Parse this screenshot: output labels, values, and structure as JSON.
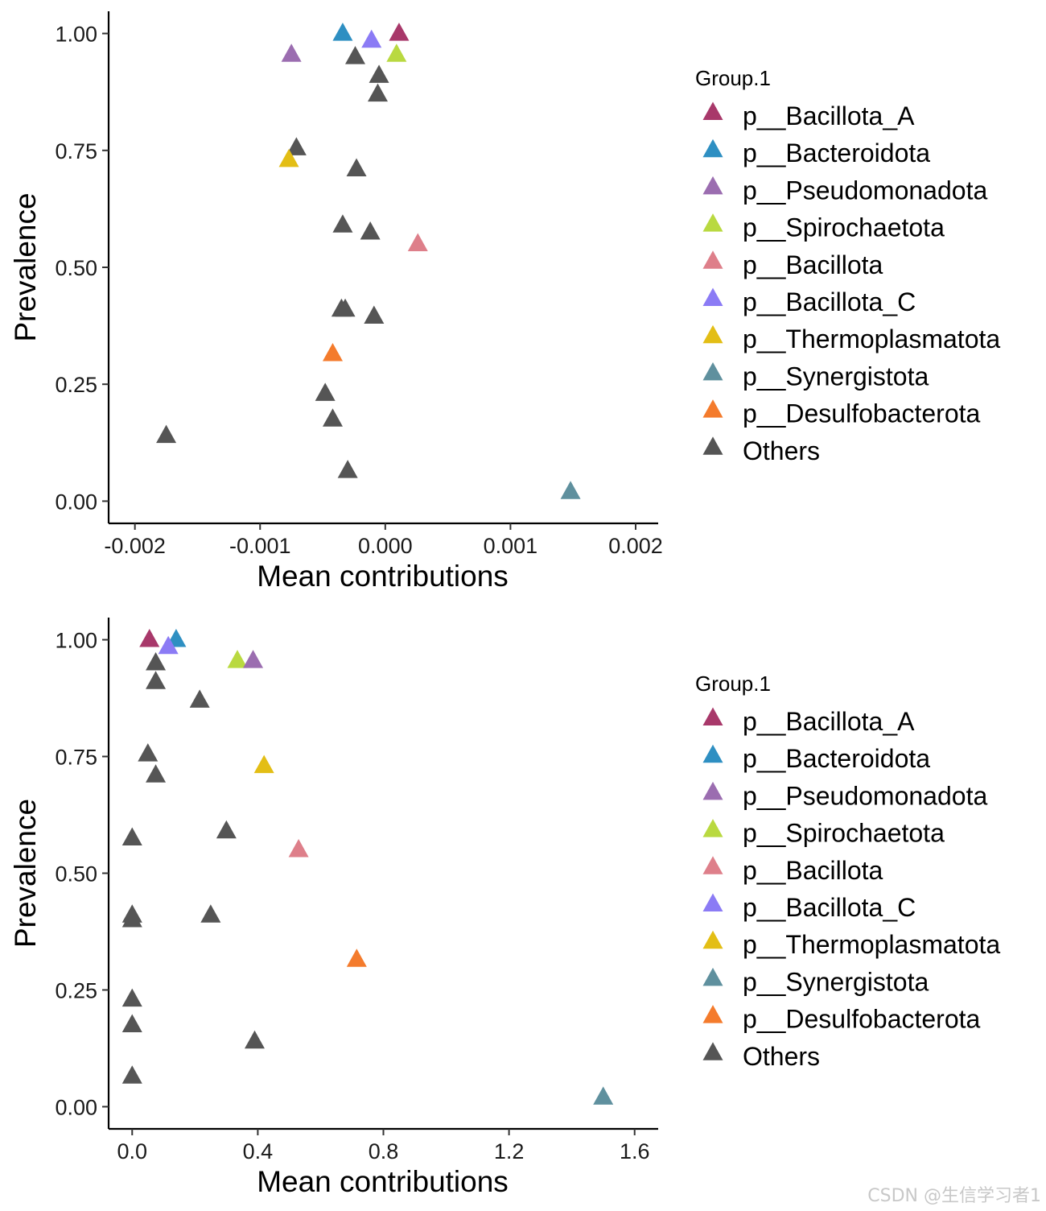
{
  "chart_data": [
    {
      "type": "scatter",
      "xlabel": "Mean contributions",
      "ylabel": "Prevalence",
      "xlim": [
        -0.00221,
        0.00218
      ],
      "ylim": [
        -0.0475,
        1.0475
      ],
      "xticks": [
        -0.002,
        -0.001,
        0.0,
        0.001,
        0.002
      ],
      "xtick_labels": [
        "-0.002",
        "-0.001",
        "0.000",
        "0.001",
        "0.002"
      ],
      "yticks": [
        0.0,
        0.25,
        0.5,
        0.75,
        1.0
      ],
      "ytick_labels": [
        "0.00",
        "0.25",
        "0.50",
        "0.75",
        "1.00"
      ],
      "grid": false,
      "legend_title": "Group.1",
      "legend_position": "right",
      "points": [
        {
          "group": "p__Bacillota_A",
          "x": 0.00011,
          "y": 1.0
        },
        {
          "group": "p__Bacteroidota",
          "x": -0.00034,
          "y": 1.0
        },
        {
          "group": "p__Bacillota_C",
          "x": -0.00011,
          "y": 0.985
        },
        {
          "group": "p__Pseudomonadota",
          "x": -0.00075,
          "y": 0.955
        },
        {
          "group": "p__Spirochaetota",
          "x": 9e-05,
          "y": 0.955
        },
        {
          "group": "Others",
          "x": -0.00024,
          "y": 0.95
        },
        {
          "group": "Others",
          "x": -5e-05,
          "y": 0.91
        },
        {
          "group": "Others",
          "x": -6e-05,
          "y": 0.87
        },
        {
          "group": "Others",
          "x": -0.00071,
          "y": 0.755
        },
        {
          "group": "p__Thermoplasmatota",
          "x": -0.00077,
          "y": 0.73
        },
        {
          "group": "Others",
          "x": -0.00023,
          "y": 0.71
        },
        {
          "group": "Others",
          "x": -0.00034,
          "y": 0.59
        },
        {
          "group": "Others",
          "x": -0.00012,
          "y": 0.575
        },
        {
          "group": "p__Bacillota",
          "x": 0.00026,
          "y": 0.55
        },
        {
          "group": "Others",
          "x": -0.00035,
          "y": 0.41
        },
        {
          "group": "Others",
          "x": -0.00032,
          "y": 0.41
        },
        {
          "group": "Others",
          "x": -9e-05,
          "y": 0.395
        },
        {
          "group": "p__Desulfobacterota",
          "x": -0.00042,
          "y": 0.315
        },
        {
          "group": "Others",
          "x": -0.00048,
          "y": 0.23
        },
        {
          "group": "Others",
          "x": -0.00042,
          "y": 0.175
        },
        {
          "group": "Others",
          "x": -0.00175,
          "y": 0.14
        },
        {
          "group": "Others",
          "x": -0.0003,
          "y": 0.065
        },
        {
          "group": "p__Synergistota",
          "x": 0.00148,
          "y": 0.02
        }
      ]
    },
    {
      "type": "scatter",
      "xlabel": "Mean contributions",
      "ylabel": "Prevalence",
      "xlim": [
        -0.075,
        1.675
      ],
      "ylim": [
        -0.0475,
        1.0475
      ],
      "xticks": [
        0.0,
        0.4,
        0.8,
        1.2,
        1.6
      ],
      "xtick_labels": [
        "0.0",
        "0.4",
        "0.8",
        "1.2",
        "1.6"
      ],
      "yticks": [
        0.0,
        0.25,
        0.5,
        0.75,
        1.0
      ],
      "ytick_labels": [
        "0.00",
        "0.25",
        "0.50",
        "0.75",
        "1.00"
      ],
      "grid": false,
      "legend_title": "Group.1",
      "legend_position": "right",
      "points": [
        {
          "group": "p__Bacillota_A",
          "x": 0.055,
          "y": 1.0
        },
        {
          "group": "p__Bacteroidota",
          "x": 0.14,
          "y": 1.0
        },
        {
          "group": "p__Bacillota_C",
          "x": 0.115,
          "y": 0.985
        },
        {
          "group": "p__Spirochaetota",
          "x": 0.335,
          "y": 0.955
        },
        {
          "group": "p__Pseudomonadota",
          "x": 0.385,
          "y": 0.955
        },
        {
          "group": "Others",
          "x": 0.075,
          "y": 0.95
        },
        {
          "group": "Others",
          "x": 0.075,
          "y": 0.91
        },
        {
          "group": "Others",
          "x": 0.215,
          "y": 0.87
        },
        {
          "group": "Others",
          "x": 0.05,
          "y": 0.755
        },
        {
          "group": "p__Thermoplasmatota",
          "x": 0.42,
          "y": 0.73
        },
        {
          "group": "Others",
          "x": 0.075,
          "y": 0.71
        },
        {
          "group": "Others",
          "x": 0.3,
          "y": 0.59
        },
        {
          "group": "Others",
          "x": 0.0,
          "y": 0.575
        },
        {
          "group": "p__Bacillota",
          "x": 0.53,
          "y": 0.55
        },
        {
          "group": "Others",
          "x": 0.0,
          "y": 0.41
        },
        {
          "group": "Others",
          "x": 0.0,
          "y": 0.4
        },
        {
          "group": "Others",
          "x": 0.25,
          "y": 0.41
        },
        {
          "group": "p__Desulfobacterota",
          "x": 0.715,
          "y": 0.315
        },
        {
          "group": "Others",
          "x": 0.0,
          "y": 0.23
        },
        {
          "group": "Others",
          "x": 0.0,
          "y": 0.175
        },
        {
          "group": "Others",
          "x": 0.39,
          "y": 0.14
        },
        {
          "group": "Others",
          "x": 0.0,
          "y": 0.065
        },
        {
          "group": "p__Synergistota",
          "x": 1.5,
          "y": 0.02
        }
      ]
    }
  ],
  "legend": {
    "title": "Group.1",
    "items": [
      {
        "label": "p__Bacillota_A",
        "color": "#A8386A"
      },
      {
        "label": "p__Bacteroidota",
        "color": "#2E8FC2"
      },
      {
        "label": "p__Pseudomonadota",
        "color": "#9B6DB0"
      },
      {
        "label": "p__Spirochaetota",
        "color": "#B9D940"
      },
      {
        "label": "p__Bacillota",
        "color": "#DE7F8A"
      },
      {
        "label": "p__Bacillota_C",
        "color": "#8B7BF5"
      },
      {
        "label": "p__Thermoplasmatota",
        "color": "#E3BE15"
      },
      {
        "label": "p__Synergistota",
        "color": "#5F909E"
      },
      {
        "label": "p__Desulfobacterota",
        "color": "#F47B2C"
      },
      {
        "label": "Others",
        "color": "#555555"
      }
    ]
  },
  "watermark": "CSDN @生信学习者1"
}
